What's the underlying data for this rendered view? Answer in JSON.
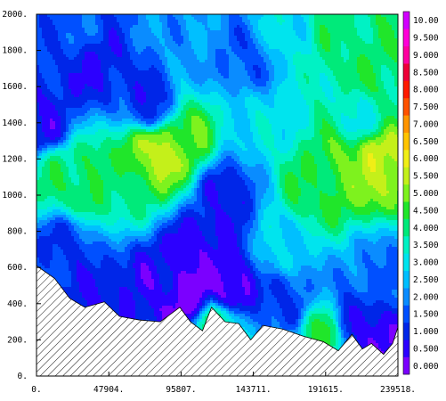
{
  "chart_data": {
    "type": "heatmap",
    "subtype": "filled-contour",
    "title": "",
    "xlabel": "",
    "ylabel": "",
    "xlim": [
      0,
      239518
    ],
    "ylim": [
      0,
      2000
    ],
    "x_ticks": [
      {
        "value": 0,
        "label": "0."
      },
      {
        "value": 47904,
        "label": "47904."
      },
      {
        "value": 95807,
        "label": "95807."
      },
      {
        "value": 143711,
        "label": "143711."
      },
      {
        "value": 191615,
        "label": "191615."
      },
      {
        "value": 239518,
        "label": "239518."
      }
    ],
    "y_ticks": [
      {
        "value": 0,
        "label": "0."
      },
      {
        "value": 200,
        "label": "200."
      },
      {
        "value": 400,
        "label": "400."
      },
      {
        "value": 600,
        "label": "600."
      },
      {
        "value": 800,
        "label": "800."
      },
      {
        "value": 1000,
        "label": "1000."
      },
      {
        "value": 1200,
        "label": "1200."
      },
      {
        "value": 1400,
        "label": "1400."
      },
      {
        "value": 1600,
        "label": "1600."
      },
      {
        "value": 1800,
        "label": "1800."
      },
      {
        "value": 2000,
        "label": "2000."
      }
    ],
    "colorbar": {
      "placement": "right",
      "levels": [
        {
          "value": 0.0,
          "label": "0.000",
          "color": "#7b00ff"
        },
        {
          "value": 0.5,
          "label": "0.500",
          "color": "#2c00ff"
        },
        {
          "value": 1.0,
          "label": "1.000",
          "color": "#0026e8"
        },
        {
          "value": 1.5,
          "label": "1.500",
          "color": "#0050ff"
        },
        {
          "value": 2.0,
          "label": "2.000",
          "color": "#0a8cff"
        },
        {
          "value": 2.5,
          "label": "2.500",
          "color": "#00bfff"
        },
        {
          "value": 3.0,
          "label": "3.000",
          "color": "#00e4ee"
        },
        {
          "value": 3.5,
          "label": "3.500",
          "color": "#00f2c4"
        },
        {
          "value": 4.0,
          "label": "4.000",
          "color": "#00ea7a"
        },
        {
          "value": 4.5,
          "label": "4.500",
          "color": "#20e62a"
        },
        {
          "value": 5.0,
          "label": "5.000",
          "color": "#7ef21e"
        },
        {
          "value": 5.5,
          "label": "5.500",
          "color": "#c4f01a"
        },
        {
          "value": 6.0,
          "label": "6.000",
          "color": "#f0ee16"
        },
        {
          "value": 6.5,
          "label": "6.500",
          "color": "#ffc400"
        },
        {
          "value": 7.0,
          "label": "7.000",
          "color": "#ff9400"
        },
        {
          "value": 7.5,
          "label": "7.500",
          "color": "#ff5200"
        },
        {
          "value": 8.0,
          "label": "8.000",
          "color": "#ff1a00"
        },
        {
          "value": 8.5,
          "label": "8.500",
          "color": "#ee0038"
        },
        {
          "value": 9.0,
          "label": "9.000",
          "color": "#ff00a0"
        },
        {
          "value": 9.5,
          "label": "9.500",
          "color": "#ff00d8"
        },
        {
          "value": 10.0,
          "label": "10.00",
          "color": "#d200ff"
        }
      ]
    },
    "field_features": [
      {
        "x": 35000,
        "y": 1070,
        "v": 4.6
      },
      {
        "x": 70000,
        "y": 1200,
        "v": 5.2
      },
      {
        "x": 82000,
        "y": 1230,
        "v": 5.8
      },
      {
        "x": 98000,
        "y": 1300,
        "v": 5.0
      },
      {
        "x": 15000,
        "y": 1110,
        "v": 4.2
      },
      {
        "x": 55000,
        "y": 1050,
        "v": 4.0
      },
      {
        "x": 225000,
        "y": 1180,
        "v": 5.8
      },
      {
        "x": 205000,
        "y": 1130,
        "v": 5.0
      },
      {
        "x": 180000,
        "y": 1050,
        "v": 4.4
      },
      {
        "x": 225000,
        "y": 1650,
        "v": 4.4
      },
      {
        "x": 200000,
        "y": 1850,
        "v": 4.2
      },
      {
        "x": 215000,
        "y": 1450,
        "v": 3.5
      },
      {
        "x": 40000,
        "y": 1700,
        "v": 1.0
      },
      {
        "x": 75000,
        "y": 1500,
        "v": 1.2
      },
      {
        "x": 125000,
        "y": 1000,
        "v": 1.1
      },
      {
        "x": 110000,
        "y": 720,
        "v": 0.7
      },
      {
        "x": 80000,
        "y": 550,
        "v": 0.9
      },
      {
        "x": 100000,
        "y": 460,
        "v": 0.2
      },
      {
        "x": 130000,
        "y": 500,
        "v": 0.4
      },
      {
        "x": 45000,
        "y": 420,
        "v": 1.0
      },
      {
        "x": 20000,
        "y": 700,
        "v": 1.4
      },
      {
        "x": 5000,
        "y": 1400,
        "v": 1.0
      },
      {
        "x": 30000,
        "y": 1950,
        "v": 1.8
      },
      {
        "x": 100000,
        "y": 1900,
        "v": 2.4
      },
      {
        "x": 140000,
        "y": 1750,
        "v": 1.8
      },
      {
        "x": 150000,
        "y": 1400,
        "v": 3.2
      },
      {
        "x": 160000,
        "y": 700,
        "v": 3.0
      },
      {
        "x": 165000,
        "y": 420,
        "v": 1.5
      },
      {
        "x": 190000,
        "y": 230,
        "v": 4.5
      },
      {
        "x": 210000,
        "y": 300,
        "v": 1.2
      },
      {
        "x": 232000,
        "y": 560,
        "v": 2.0
      },
      {
        "x": 233000,
        "y": 180,
        "v": 0.3
      },
      {
        "x": 165000,
        "y": 1900,
        "v": 3.3
      },
      {
        "x": 120000,
        "y": 260,
        "v": 4.2
      }
    ],
    "terrain": {
      "x": [
        0,
        12000,
        22000,
        32000,
        45000,
        55000,
        68000,
        82000,
        95000,
        102000,
        110000,
        116000,
        125000,
        134000,
        142000,
        150000,
        163000,
        177000,
        190000,
        200000,
        209000,
        216000,
        222000,
        230000,
        236000,
        239518
      ],
      "y": [
        610,
        540,
        430,
        380,
        410,
        330,
        310,
        300,
        380,
        300,
        250,
        380,
        300,
        290,
        200,
        280,
        260,
        220,
        190,
        140,
        230,
        150,
        180,
        120,
        180,
        270
      ]
    }
  }
}
